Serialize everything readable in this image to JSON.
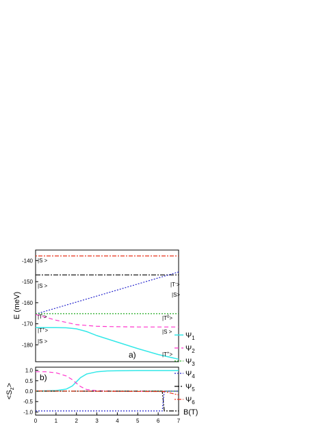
{
  "chart_data": [
    {
      "panel": "a)",
      "type": "line",
      "ylabel": "E (meV)",
      "xlim": [
        0,
        7
      ],
      "ylim": [
        -188,
        -135
      ],
      "yticks": [
        -140,
        -150,
        -160,
        -170,
        -180
      ],
      "grid": false,
      "series": [
        {
          "x": [
            0,
            7
          ],
          "y": [
            -137.8,
            -137.8
          ],
          "color": "#e8331c",
          "dash": "2,2,6,2"
        },
        {
          "x": [
            0,
            7
          ],
          "y": [
            -146.8,
            -146.8
          ],
          "color": "#000000",
          "dash": "7,2,2,2"
        },
        {
          "x": [
            0,
            7
          ],
          "y": [
            -165.4,
            -145.4
          ],
          "color": "#2222cc",
          "dash": "2,2"
        },
        {
          "x": [
            0,
            7
          ],
          "y": [
            -165.2,
            -165.2
          ],
          "color": "#22aa22",
          "dash": "2,2"
        },
        {
          "x": [
            0,
            1,
            2,
            3,
            4,
            5,
            6,
            7
          ],
          "y": [
            -165.6,
            -168.3,
            -170.4,
            -171.2,
            -171.4,
            -171.5,
            -171.5,
            -171.5
          ],
          "color": "#ff33cc",
          "dash": "6,4"
        },
        {
          "x": [
            0,
            1,
            1.5,
            2,
            2.5,
            3,
            4,
            5,
            6,
            7
          ],
          "y": [
            -171.8,
            -171.8,
            -171.9,
            -172.4,
            -173.7,
            -175.6,
            -178.7,
            -181.8,
            -184.6,
            -186.8
          ],
          "color": "#33e8e8",
          "dash": ""
        }
      ],
      "annotations": {
        "S1": "|S >",
        "S2": "|S >",
        "S3": "|S >",
        "Tm": "|T",
        "Tm_sup": "-",
        "Tm_end": ">",
        "T0": "|T",
        "T0_sup": "0",
        "T0_end": ">",
        "Tp": "|T",
        "Tp_sup": "+",
        "Tp_end": ">",
        "right_Tm": "|T",
        "right_Tm_sup": "-",
        "right_Tm_end": ">",
        "right_S1": "|S>",
        "right_T0": "|T",
        "right_T0_sup": "0",
        "right_T0_end": ">",
        "right_S2": "|S >",
        "right_Tp": "|T",
        "right_Tp_sup": "+",
        "right_Tp_end": ">",
        "panel_label": "a)"
      },
      "psi_labels": [
        {
          "base": "Ψ",
          "sub": "1",
          "color": "#33e8e8",
          "dash": ""
        },
        {
          "base": "Ψ",
          "sub": "2",
          "color": "#ff33cc",
          "dash": "6,4"
        },
        {
          "base": "Ψ",
          "sub": "3",
          "color": "#22aa22",
          "dash": "2,2"
        }
      ]
    },
    {
      "panel": "b)",
      "type": "line",
      "ylabel": "<S",
      "ylabel_sub": "z",
      "ylabel_end": ">",
      "xlabel": "B(T)",
      "xlim": [
        0,
        7
      ],
      "ylim": [
        -1.15,
        1.15
      ],
      "xticks": [
        0,
        1,
        2,
        3,
        4,
        5,
        6,
        7
      ],
      "yticks": [
        1.0,
        0.5,
        0.0,
        -0.5,
        -1.0
      ],
      "yticklabels": [
        "1.0",
        "0.5",
        "0.0",
        "-0.5",
        "-1.0"
      ],
      "xticklabels": [
        "0",
        "1",
        "2",
        "3",
        "4",
        "5",
        "6",
        "7"
      ],
      "grid": false,
      "series": [
        {
          "x": [
            0,
            1,
            1.5,
            1.8,
            2.0,
            2.2,
            2.5,
            3,
            3.5,
            4,
            5,
            6,
            7
          ],
          "y": [
            0,
            0.03,
            0.1,
            0.25,
            0.45,
            0.65,
            0.82,
            0.93,
            0.97,
            0.98,
            0.99,
            0.99,
            0.99
          ],
          "color": "#33e8e8",
          "dash": ""
        },
        {
          "x": [
            0,
            0.5,
            1,
            1.5,
            1.8,
            2.0,
            2.2,
            2.5,
            3,
            3.5,
            4,
            7
          ],
          "y": [
            0.93,
            0.93,
            0.88,
            0.73,
            0.55,
            0.38,
            0.22,
            0.08,
            0.02,
            0.01,
            0,
            0
          ],
          "color": "#ff33cc",
          "dash": "6,4"
        },
        {
          "x": [
            0,
            6.2,
            6.3,
            7
          ],
          "y": [
            0,
            0,
            -0.95,
            -0.95
          ],
          "color": "#000000",
          "dash": "7,2,2,2"
        },
        {
          "x": [
            0,
            6.2,
            6.3,
            7
          ],
          "y": [
            -0.95,
            -0.95,
            0,
            0
          ],
          "color": "#2222cc",
          "dash": "2,2"
        },
        {
          "x": [
            0,
            7
          ],
          "y": [
            0,
            0
          ],
          "color": "#22aa22",
          "dash": "2,2"
        },
        {
          "x": [
            0,
            6.3,
            7
          ],
          "y": [
            0.01,
            -0.02,
            -0.18
          ],
          "color": "#e8331c",
          "dash": "2,2,6,2"
        }
      ],
      "annotations": {
        "panel_label": "b)"
      },
      "psi_labels": [
        {
          "base": "Ψ",
          "sub": "4",
          "color": "#2222cc",
          "dash": "2,2"
        },
        {
          "base": "Ψ",
          "sub": "5",
          "color": "#000000",
          "dash": "7,2,2,2"
        },
        {
          "base": "Ψ",
          "sub": "6",
          "color": "#e8331c",
          "dash": "2,2,6,2"
        }
      ]
    }
  ]
}
